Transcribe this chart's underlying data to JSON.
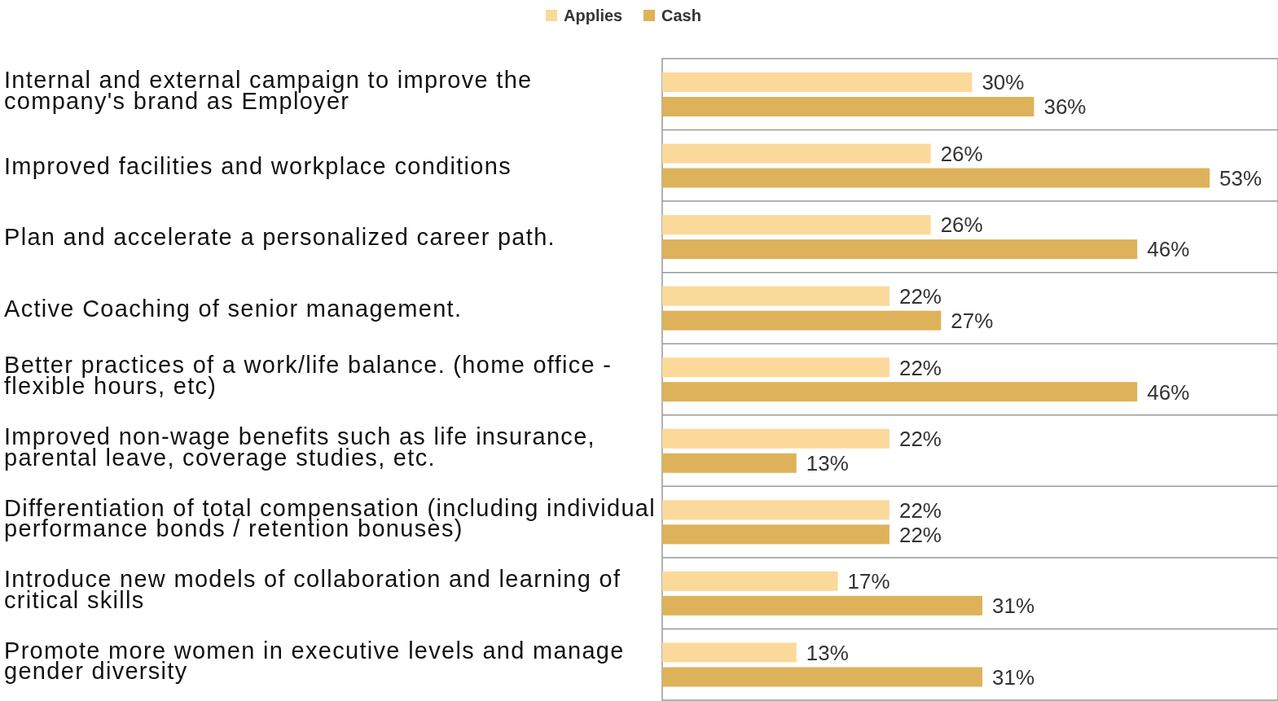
{
  "chart_data": {
    "type": "bar",
    "orientation": "horizontal",
    "legend": "top",
    "grid": "y",
    "categories": [
      "Internal and external campaign to improve the company's brand as Employer",
      "Improved facilities and workplace conditions",
      "Plan and accelerate a personalized career path.",
      "Active Coaching of senior management.",
      "Better practices of a work/life balance. (home office - flexible hours, etc)",
      "Improved non-wage benefits such as life insurance, parental leave, coverage studies, etc.",
      "Differentiation of total compensation (including individual performance bonds / retention bonuses)",
      "Introduce new models of collaboration and learning of critical skills",
      "Promote more women in executive levels and manage gender diversity"
    ],
    "series": [
      {
        "name": "Applies",
        "color": "#fbd99a",
        "values": [
          30,
          26,
          26,
          22,
          22,
          22,
          22,
          17,
          13
        ],
        "value_labels": [
          "30%",
          "26%",
          "26%",
          "22%",
          "22%",
          "22%",
          "22%",
          "17%",
          "13%"
        ]
      },
      {
        "name": "Cash",
        "color": "#ddb25a",
        "values": [
          36,
          53,
          46,
          27,
          46,
          13,
          22,
          31,
          31
        ],
        "value_labels": [
          "36%",
          "53%",
          "46%",
          "27%",
          "46%",
          "13%",
          "22%",
          "31%",
          "31%"
        ]
      }
    ]
  }
}
